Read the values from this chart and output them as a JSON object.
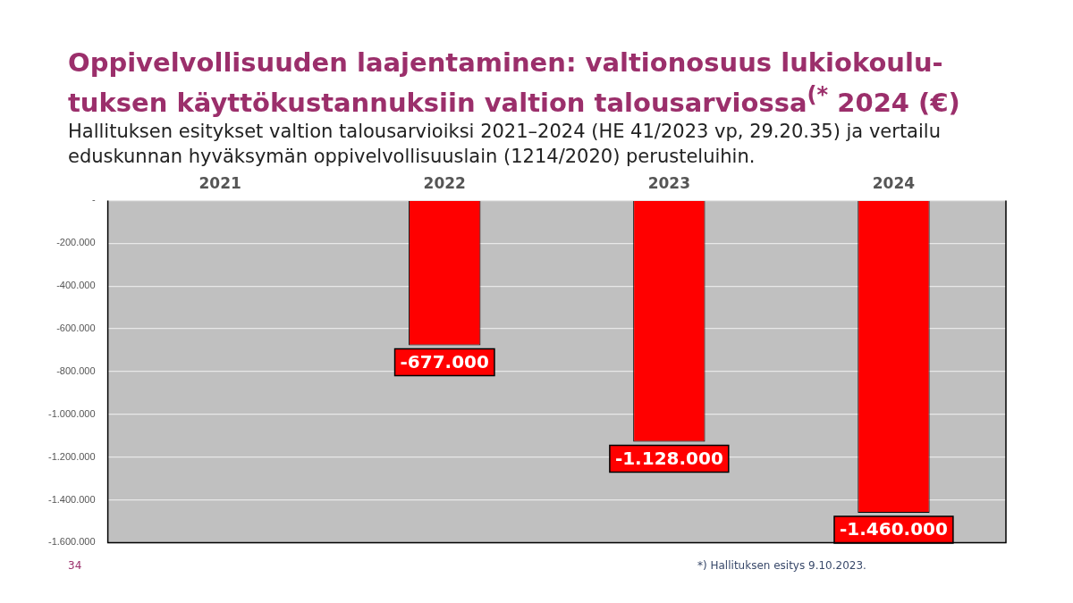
{
  "chart_data": {
    "type": "bar",
    "title": "Oppivelvollisuuden laajentaminen: valtionosuus lukiokoulu-\ntuksen käyttökustannuksiin valtion talousarviossa$^{(*}$ 2024 (€)",
    "subtitle": "Hallituksen esitykset valtion talousarvioiksi 2021–2024 (HE 41/2023 vp, 29.20.35) ja vertailu eduskunnan hyväksymän oppivelvollisuuslain (1214/2020) perusteluihin.",
    "categories": [
      "2021",
      "2022",
      "2023",
      "2024"
    ],
    "series": [
      {
        "color": "#ff0000",
        "values": [
          0,
          -677000,
          -1128000,
          -1460000
        ],
        "value_labels": [
          null,
          "-677.000",
          "-1.128.000",
          "-1.460.000"
        ]
      }
    ],
    "ylim": [
      -1600000,
      0
    ],
    "yticks": [
      {
        "value": 0,
        "label": "-"
      },
      {
        "value": -200000,
        "label": "-200.000"
      },
      {
        "value": -400000,
        "label": "-400.000"
      },
      {
        "value": -600000,
        "label": "-600.000"
      },
      {
        "value": -800000,
        "label": "-800.000"
      },
      {
        "value": -1000000,
        "label": "-1.000.000"
      },
      {
        "value": -1200000,
        "label": "-1.200.000"
      },
      {
        "value": -1400000,
        "label": "-1.400.000"
      },
      {
        "value": -1600000,
        "label": "-1.600.000"
      }
    ],
    "grid": "y",
    "legend": false,
    "annotations": [
      "*)  Hallituksen esitys 9.10.2023.",
      "34"
    ]
  }
}
